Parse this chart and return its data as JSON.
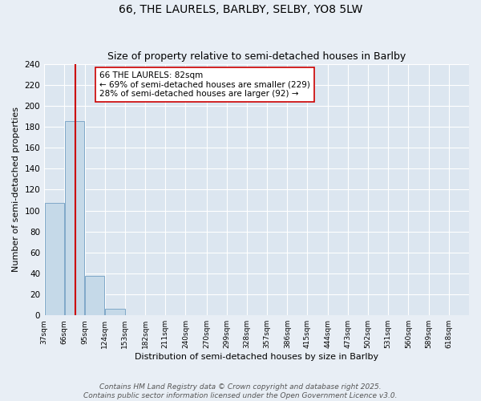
{
  "title": "66, THE LAURELS, BARLBY, SELBY, YO8 5LW",
  "subtitle": "Size of property relative to semi-detached houses in Barlby",
  "xlabel": "Distribution of semi-detached houses by size in Barlby",
  "ylabel": "Number of semi-detached properties",
  "bin_labels": [
    "37sqm",
    "66sqm",
    "95sqm",
    "124sqm",
    "153sqm",
    "182sqm",
    "211sqm",
    "240sqm",
    "270sqm",
    "299sqm",
    "328sqm",
    "357sqm",
    "386sqm",
    "415sqm",
    "444sqm",
    "473sqm",
    "502sqm",
    "531sqm",
    "560sqm",
    "589sqm",
    "618sqm"
  ],
  "bin_starts": [
    37,
    66,
    95,
    124,
    153,
    182,
    211,
    240,
    270,
    299,
    328,
    357,
    386,
    415,
    444,
    473,
    502,
    531,
    560,
    589,
    618
  ],
  "bar_heights": [
    107,
    185,
    38,
    6,
    0,
    0,
    0,
    0,
    0,
    0,
    0,
    0,
    0,
    0,
    0,
    0,
    0,
    0,
    0,
    0
  ],
  "bin_width": 29,
  "ylim": [
    0,
    240
  ],
  "yticks": [
    0,
    20,
    40,
    60,
    80,
    100,
    120,
    140,
    160,
    180,
    200,
    220,
    240
  ],
  "property_size": 82,
  "red_line_color": "#cc0000",
  "bar_color": "#c5d9e8",
  "bar_edge_color": "#7fa8c8",
  "background_color": "#e8eef5",
  "plot_bg_color": "#dce6f0",
  "annotation_line1": "66 THE LAURELS: 82sqm",
  "annotation_line2": "← 69% of semi-detached houses are smaller (229)",
  "annotation_line3": "28% of semi-detached houses are larger (92) →",
  "footer_line1": "Contains HM Land Registry data © Crown copyright and database right 2025.",
  "footer_line2": "Contains public sector information licensed under the Open Government Licence v3.0.",
  "title_fontsize": 10,
  "subtitle_fontsize": 9,
  "annotation_fontsize": 7.5,
  "footer_fontsize": 6.5,
  "xlabel_fontsize": 8,
  "ylabel_fontsize": 8
}
